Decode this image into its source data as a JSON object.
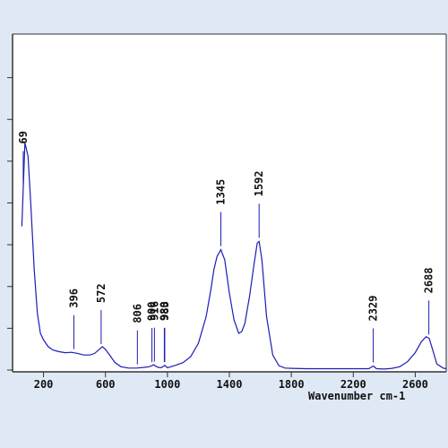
{
  "chart_data": {
    "type": "line",
    "title": "",
    "xlabel": "Wavenumber cm-1",
    "ylabel": "",
    "xlim": [
      0,
      2800
    ],
    "ylim": [
      0,
      100
    ],
    "grid": false,
    "line_color": "#1c1cb5",
    "x_ticks": [
      200,
      600,
      1000,
      1400,
      1800,
      2200,
      2600
    ],
    "x_tick_labels": [
      "200",
      "600",
      "1000",
      "1400",
      "1800",
      "2200",
      "2600"
    ],
    "y_ticks": [
      0,
      12.5,
      25,
      37.5,
      50,
      62.5,
      75,
      87.5
    ],
    "series": [
      {
        "x": [
          60,
          80,
          100,
          120,
          140,
          160,
          180,
          200,
          230,
          260,
          300,
          340,
          380,
          420,
          460,
          500,
          530,
          560,
          580,
          600,
          630,
          660,
          700,
          750,
          800,
          850,
          880,
          900,
          910,
          920,
          940,
          960,
          983,
          1000,
          1050,
          1100,
          1150,
          1200,
          1250,
          1280,
          1300,
          1320,
          1345,
          1370,
          1400,
          1430,
          1460,
          1480,
          1500,
          1530,
          1560,
          1580,
          1592,
          1610,
          1640,
          1680,
          1720,
          1760,
          1800,
          1900,
          2000,
          2100,
          2200,
          2300,
          2329,
          2350,
          2400,
          2450,
          2500,
          2550,
          2600,
          2640,
          2670,
          2690,
          2710,
          2740,
          2780,
          2800
        ],
        "y": [
          43,
          68,
          64,
          48,
          30,
          17,
          11,
          9,
          7,
          6,
          5.5,
          5.2,
          5.3,
          5,
          4.5,
          4.5,
          5,
          6.2,
          7,
          6.2,
          4.3,
          2.3,
          1,
          0.6,
          0.6,
          0.8,
          1,
          1.3,
          1.6,
          1.3,
          0.8,
          0.7,
          1.4,
          0.7,
          1.4,
          2.2,
          4,
          8,
          16,
          24,
          30,
          34,
          36,
          33,
          23,
          15,
          11,
          11.5,
          14,
          22,
          32,
          38,
          38.5,
          33,
          16,
          4.5,
          1.3,
          0.6,
          0.5,
          0.4,
          0.4,
          0.4,
          0.4,
          0.4,
          1.2,
          0.4,
          0.3,
          0.5,
          1,
          2.5,
          5.2,
          8.5,
          10,
          9.5,
          6.5,
          1.8,
          0.6,
          0.4
        ]
      }
    ],
    "peaks": [
      {
        "x": 69,
        "label": "69"
      },
      {
        "x": 396,
        "label": "396"
      },
      {
        "x": 572,
        "label": "572"
      },
      {
        "x": 806,
        "label": "806"
      },
      {
        "x": 900,
        "label": "900"
      },
      {
        "x": 916,
        "label": "916"
      },
      {
        "x": 980,
        "label": "980"
      },
      {
        "x": 983,
        "label": "983"
      },
      {
        "x": 1345,
        "label": "1345"
      },
      {
        "x": 1592,
        "label": "1592"
      },
      {
        "x": 2329,
        "label": "2329"
      },
      {
        "x": 2688,
        "label": "2688"
      }
    ]
  }
}
